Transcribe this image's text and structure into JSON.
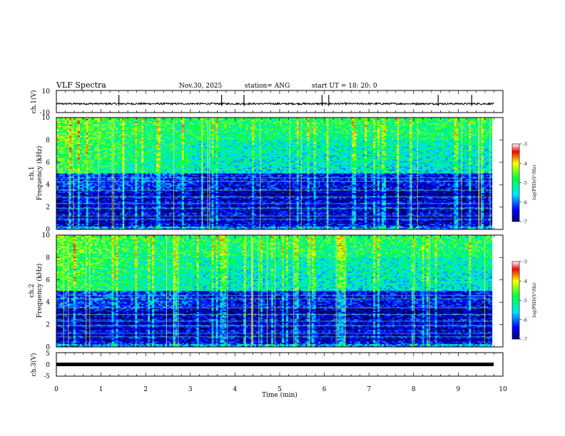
{
  "header": {
    "title": "VLF Spectra",
    "date": "Nov.30, 2025",
    "station": "station= ANG",
    "start": "start  UT =   18: 20: 0"
  },
  "chart_data": [
    {
      "type": "line",
      "panel": "ch1-waveform",
      "ylabel": "ch.1(V)",
      "ylim": [
        -10,
        10
      ],
      "yticks": [
        "10",
        "-10"
      ],
      "xlim": [
        0,
        10
      ],
      "baseline_v": -2,
      "spikes_min": [
        1.4,
        3.7,
        4.2,
        5.95,
        6.1,
        8.55,
        9.3
      ]
    },
    {
      "type": "heatmap",
      "panel": "ch1-spectrogram",
      "ylabel": "ch.1",
      "ylabel2": "Frequency (kHz)",
      "ylim": [
        0,
        10
      ],
      "yticks": [
        "0",
        "2",
        "4",
        "6",
        "8",
        "10"
      ],
      "xlim": [
        0,
        10
      ],
      "colorbar": {
        "label": "log(PSD)(V²/Hz)",
        "range": [
          -7,
          -3
        ],
        "ticks": [
          "-3",
          "-4",
          "-5",
          "-6",
          "-7"
        ]
      }
    },
    {
      "type": "heatmap",
      "panel": "ch2-spectrogram",
      "ylabel": "ch.2",
      "ylabel2": "Frequency (kHz)",
      "ylim": [
        0,
        10
      ],
      "yticks": [
        "0",
        "2",
        "4",
        "6",
        "8",
        "10"
      ],
      "xlim": [
        0,
        10
      ],
      "colorbar": {
        "label": "log(PSD)(V²/Hz)",
        "range": [
          -7,
          -3
        ],
        "ticks": [
          "-3",
          "-4",
          "-5",
          "-6",
          "-7"
        ]
      }
    },
    {
      "type": "line",
      "panel": "ch3-waveform",
      "ylabel": "ch.3(V)",
      "ylim": [
        -5,
        5
      ],
      "yticks": [
        "5",
        "0",
        "-5"
      ],
      "xlim": [
        0,
        10
      ],
      "baseline_v": 0,
      "xlabel": "Time (min)",
      "xticks": [
        "0",
        "1",
        "2",
        "3",
        "4",
        "5",
        "6",
        "7",
        "8",
        "9",
        "10"
      ]
    }
  ]
}
